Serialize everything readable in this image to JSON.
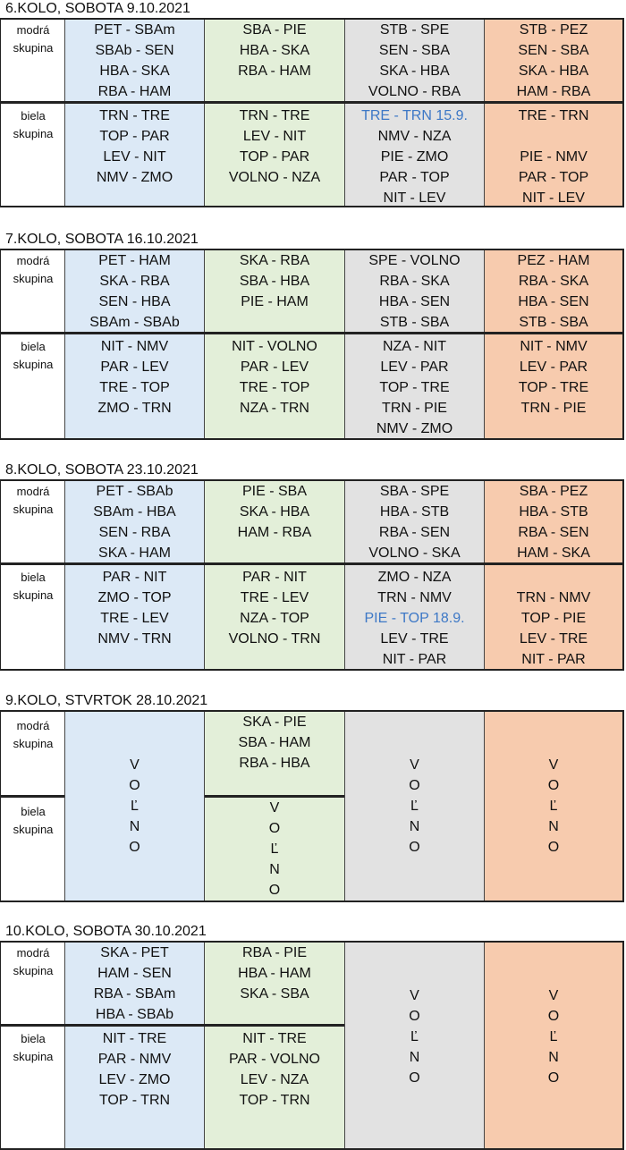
{
  "group_labels": {
    "blue": [
      "modrá",
      "skupina"
    ],
    "white": [
      "biela",
      "skupina"
    ]
  },
  "rounds": [
    {
      "title": "6.KOLO, SOBOTA 9.10.2021",
      "columns": [
        {
          "blue": [
            "PET - SBAm",
            "SBAb - SEN",
            "HBA - SKA",
            "RBA - HAM"
          ],
          "white": [
            "TRN - TRE",
            "TOP - PAR",
            "LEV - NIT",
            "NMV - ZMO"
          ]
        },
        {
          "blue": [
            "SBA - PIE",
            "HBA - SKA",
            "RBA - HAM",
            ""
          ],
          "white": [
            "TRN - TRE",
            "LEV - NIT",
            "TOP - PAR",
            "VOLNO - NZA"
          ]
        },
        {
          "blue": [
            "STB - SPE",
            "SEN - SBA",
            "SKA - HBA",
            "VOLNO - RBA"
          ],
          "white": [
            "TRE - TRN 15.9.",
            "NMV - NZA",
            "PIE - ZMO",
            "PAR - TOP",
            "NIT - LEV"
          ],
          "white_highlight": [
            0
          ]
        },
        {
          "blue": [
            "STB - PEZ",
            "SEN - SBA",
            "SKA - HBA",
            "HAM - RBA"
          ],
          "white": [
            "TRE - TRN",
            "",
            "PIE - NMV",
            "PAR - TOP",
            "NIT - LEV"
          ]
        }
      ]
    },
    {
      "title": "7.KOLO, SOBOTA  16.10.2021",
      "columns": [
        {
          "blue": [
            "PET - HAM",
            "SKA - RBA",
            "SEN - HBA",
            "SBAm - SBAb"
          ],
          "white": [
            "NIT - NMV",
            "PAR - LEV",
            "TRE - TOP",
            "ZMO - TRN"
          ]
        },
        {
          "blue": [
            "SKA - RBA",
            "SBA - HBA",
            "PIE - HAM",
            ""
          ],
          "white": [
            "NIT - VOLNO",
            "PAR - LEV",
            "TRE - TOP",
            "NZA - TRN"
          ]
        },
        {
          "blue": [
            "SPE - VOLNO",
            "RBA - SKA",
            "HBA - SEN",
            "STB - SBA"
          ],
          "white": [
            "NZA - NIT",
            "LEV - PAR",
            "TOP - TRE",
            "TRN - PIE",
            "NMV - ZMO"
          ]
        },
        {
          "blue": [
            "PEZ - HAM",
            "RBA - SKA",
            "HBA - SEN",
            "STB - SBA"
          ],
          "white": [
            "NIT - NMV",
            "LEV - PAR",
            "TOP - TRE",
            "TRN - PIE"
          ]
        }
      ]
    },
    {
      "title": "8.KOLO, SOBOTA  23.10.2021",
      "columns": [
        {
          "blue": [
            "PET - SBAb",
            "SBAm - HBA",
            "SEN - RBA",
            "SKA - HAM"
          ],
          "white": [
            "PAR - NIT",
            "ZMO - TOP",
            "TRE - LEV",
            "NMV - TRN"
          ]
        },
        {
          "blue": [
            "PIE - SBA",
            "SKA - HBA",
            "HAM - RBA",
            ""
          ],
          "white": [
            "PAR - NIT",
            "TRE - LEV",
            "NZA - TOP",
            "VOLNO - TRN"
          ]
        },
        {
          "blue": [
            "SBA - SPE",
            "HBA - STB",
            "RBA - SEN",
            "VOLNO - SKA"
          ],
          "white": [
            "ZMO - NZA",
            "TRN - NMV",
            "PIE - TOP 18.9.",
            "LEV - TRE",
            "NIT - PAR"
          ],
          "white_highlight": [
            2
          ]
        },
        {
          "blue": [
            "SBA - PEZ",
            "HBA - STB",
            "RBA - SEN",
            "HAM - SKA"
          ],
          "white": [
            "",
            "TRN - NMV",
            "TOP - PIE",
            "LEV - TRE",
            "NIT - PAR"
          ]
        }
      ]
    },
    {
      "title": "9.KOLO, STVRTOK 28.10.2021",
      "volno_cols": [
        {
          "top": 2,
          "letters": [
            "V",
            "O",
            "Ľ",
            "N",
            "O"
          ]
        },
        {
          "top": 4,
          "letters": [
            "V",
            "O",
            "Ľ",
            "N",
            "O"
          ]
        },
        {
          "top": 2,
          "letters": [
            "V",
            "O",
            "Ľ",
            "N",
            "O"
          ]
        },
        {
          "top": 2,
          "letters": [
            "V",
            "O",
            "Ľ",
            "N",
            "O"
          ]
        }
      ],
      "green_blue": [
        "SKA - PIE",
        "SBA - HAM",
        "RBA - HBA"
      ]
    },
    {
      "title": "10.KOLO, SOBOTA  30.10.2021",
      "columns": [
        {
          "blue": [
            "SKA - PET",
            "HAM - SEN",
            "RBA - SBAm",
            "HBA - SBAb"
          ],
          "white": [
            "NIT - TRE",
            "PAR - NMV",
            "LEV - ZMO",
            "TOP - TRN"
          ]
        },
        {
          "blue": [
            "RBA - PIE",
            "HBA - HAM",
            "SKA - SBA",
            ""
          ],
          "white": [
            "NIT - TRE",
            "PAR - VOLNO",
            "LEV - NZA",
            "TOP - TRN"
          ]
        }
      ],
      "volno_cols": [
        {
          "top": 2,
          "letters": [
            "V",
            "O",
            "Ľ",
            "N",
            "O"
          ]
        },
        {
          "top": 2,
          "letters": [
            "V",
            "O",
            "Ľ",
            "N",
            "O"
          ]
        }
      ]
    }
  ]
}
